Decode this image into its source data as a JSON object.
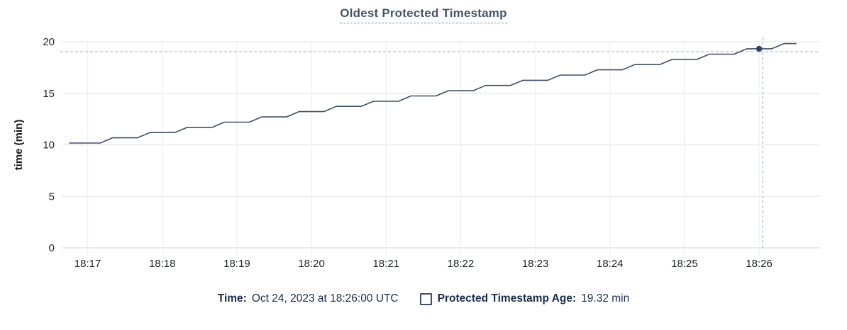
{
  "title": "Oldest Protected Timestamp",
  "tooltip": {
    "time_label": "Time:",
    "time_value": "Oct 24, 2023 at 18:26:00 UTC",
    "series_label": "Protected Timestamp Age:",
    "series_value": "19.32 min"
  },
  "colors": {
    "line": "#404f6a",
    "dot": "#33415c",
    "crosshair": "#a6c0cd",
    "grid_h": "#ececec",
    "grid_v": "#f1f1f1",
    "axis_bottom": "#e4e4e4",
    "title_text": "#44536e",
    "legend_text": "#1b2d4c"
  },
  "chart_data": {
    "type": "line",
    "title": "Oldest Protected Timestamp",
    "xlabel": "",
    "ylabel": "time (min)",
    "ylim": [
      0,
      20
    ],
    "y_ticks": [
      0,
      5,
      10,
      15,
      20
    ],
    "x_unit": "seconds relative to 18:17:00 UTC on Oct 24, 2023",
    "xlim": [
      -22,
      589
    ],
    "x_ticks": [
      {
        "t": 0,
        "label": "18:17"
      },
      {
        "t": 60,
        "label": "18:18"
      },
      {
        "t": 120,
        "label": "18:19"
      },
      {
        "t": 180,
        "label": "18:20"
      },
      {
        "t": 240,
        "label": "18:21"
      },
      {
        "t": 300,
        "label": "18:22"
      },
      {
        "t": 360,
        "label": "18:23"
      },
      {
        "t": 420,
        "label": "18:24"
      },
      {
        "t": 480,
        "label": "18:25"
      },
      {
        "t": 540,
        "label": "18:26"
      }
    ],
    "grid": true,
    "legend_position": "bottom",
    "series": [
      {
        "name": "Protected Timestamp Age",
        "points": [
          [
            -15,
            10.17
          ],
          [
            10,
            10.17
          ],
          [
            20,
            10.68
          ],
          [
            40,
            10.68
          ],
          [
            50,
            11.19
          ],
          [
            70,
            11.19
          ],
          [
            80,
            11.69
          ],
          [
            100,
            11.69
          ],
          [
            110,
            12.2
          ],
          [
            130,
            12.2
          ],
          [
            140,
            12.71
          ],
          [
            160,
            12.71
          ],
          [
            170,
            13.22
          ],
          [
            190,
            13.22
          ],
          [
            200,
            13.73
          ],
          [
            220,
            13.73
          ],
          [
            230,
            14.23
          ],
          [
            250,
            14.23
          ],
          [
            260,
            14.74
          ],
          [
            280,
            14.74
          ],
          [
            290,
            15.25
          ],
          [
            310,
            15.25
          ],
          [
            320,
            15.76
          ],
          [
            340,
            15.76
          ],
          [
            350,
            16.26
          ],
          [
            370,
            16.26
          ],
          [
            380,
            16.77
          ],
          [
            400,
            16.77
          ],
          [
            410,
            17.28
          ],
          [
            430,
            17.28
          ],
          [
            440,
            17.79
          ],
          [
            460,
            17.79
          ],
          [
            470,
            18.29
          ],
          [
            490,
            18.29
          ],
          [
            500,
            18.8
          ],
          [
            520,
            18.8
          ],
          [
            530,
            19.32
          ],
          [
            550,
            19.32
          ],
          [
            560,
            19.82
          ],
          [
            570,
            19.82
          ]
        ]
      }
    ],
    "hover_point": {
      "t": 540,
      "value": 19.32,
      "time": "18:26:00",
      "value_label": "19.32 min"
    },
    "crosshair": {
      "t": 543,
      "value": 19.04
    }
  }
}
